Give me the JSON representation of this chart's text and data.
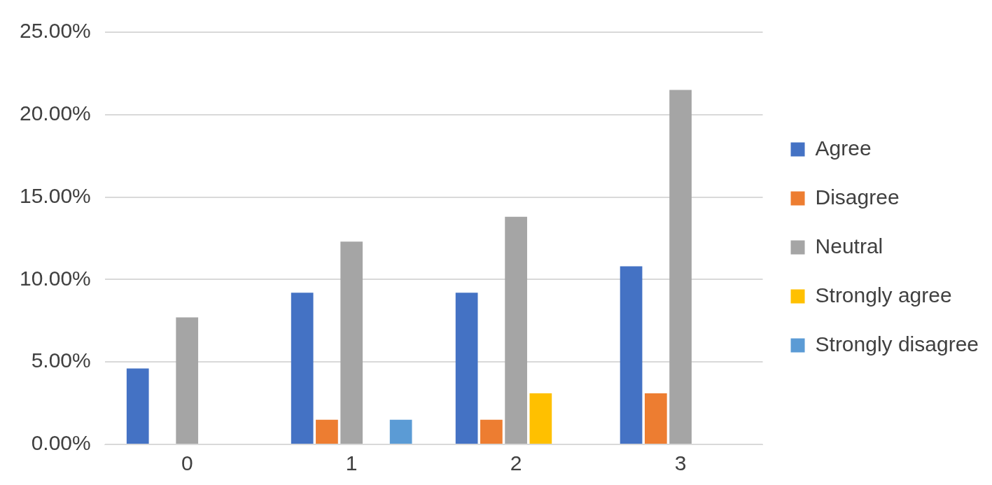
{
  "chart_data": {
    "type": "bar",
    "categories": [
      "0",
      "1",
      "2",
      "3"
    ],
    "series": [
      {
        "name": "Agree",
        "color": "#4472c4",
        "values": [
          4.6,
          9.2,
          9.2,
          10.8
        ]
      },
      {
        "name": "Disagree",
        "color": "#ed7d31",
        "values": [
          0,
          1.5,
          1.5,
          3.1
        ]
      },
      {
        "name": "Neutral",
        "color": "#a5a5a5",
        "values": [
          7.7,
          12.3,
          13.8,
          21.5
        ]
      },
      {
        "name": "Strongly agree",
        "color": "#ffc000",
        "values": [
          0,
          0,
          3.1,
          0
        ]
      },
      {
        "name": "Strongly disagree",
        "color": "#5b9bd5",
        "values": [
          0,
          1.5,
          0,
          0
        ]
      }
    ],
    "ylim": [
      0,
      25
    ],
    "yticks": [
      {
        "value": 0,
        "label": "0.00%"
      },
      {
        "value": 5,
        "label": "5.00%"
      },
      {
        "value": 10,
        "label": "10.00%"
      },
      {
        "value": 15,
        "label": "15.00%"
      },
      {
        "value": 20,
        "label": "20.00%"
      },
      {
        "value": 25,
        "label": "25.00%"
      }
    ],
    "grid": "y",
    "legend": "right"
  }
}
